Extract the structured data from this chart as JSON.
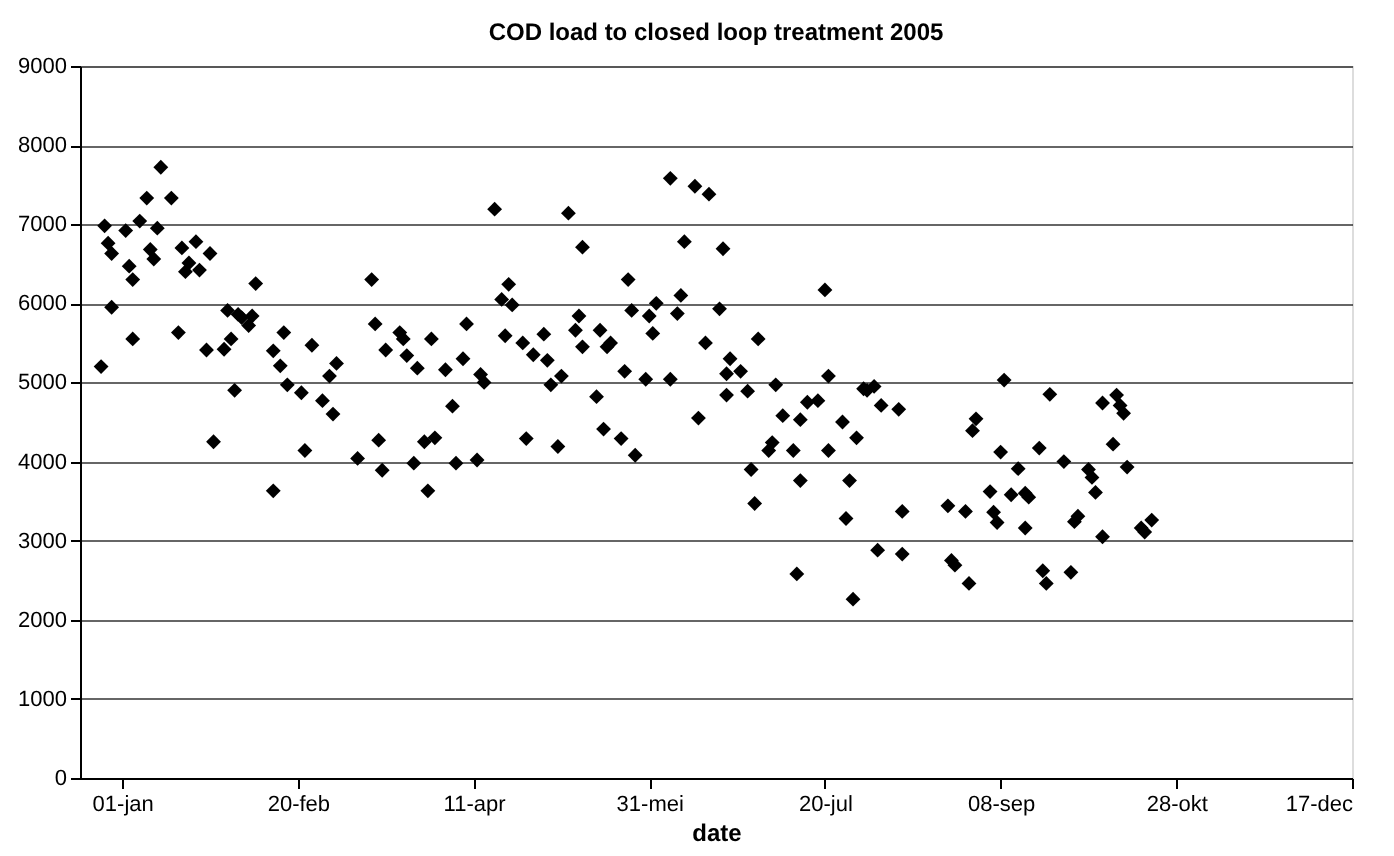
{
  "chart_data": {
    "type": "scatter",
    "title": "COD load to closed loop treatment 2005",
    "xlabel": "date",
    "x": [
      "2004-12-26",
      "2004-12-27",
      "2004-12-28",
      "2004-12-29",
      "2004-12-29",
      "2005-01-02",
      "2005-01-03",
      "2005-01-04",
      "2005-01-04",
      "2005-01-06",
      "2005-01-08",
      "2005-01-09",
      "2005-01-10",
      "2005-01-11",
      "2005-01-12",
      "2005-01-15",
      "2005-01-17",
      "2005-01-18",
      "2005-01-19",
      "2005-01-20",
      "2005-01-22",
      "2005-01-23",
      "2005-01-25",
      "2005-01-26",
      "2005-01-27",
      "2005-01-30",
      "2005-01-31",
      "2005-02-01",
      "2005-02-02",
      "2005-02-03",
      "2005-02-04",
      "2005-02-06",
      "2005-02-07",
      "2005-02-08",
      "2005-02-13",
      "2005-02-13",
      "2005-02-15",
      "2005-02-16",
      "2005-02-17",
      "2005-02-21",
      "2005-02-22",
      "2005-02-24",
      "2005-02-27",
      "2005-03-01",
      "2005-03-02",
      "2005-03-03",
      "2005-03-09",
      "2005-03-13",
      "2005-03-14",
      "2005-03-15",
      "2005-03-16",
      "2005-03-17",
      "2005-03-21",
      "2005-03-22",
      "2005-03-23",
      "2005-03-25",
      "2005-03-26",
      "2005-03-28",
      "2005-03-29",
      "2005-03-30",
      "2005-03-31",
      "2005-04-03",
      "2005-04-05",
      "2005-04-06",
      "2005-04-08",
      "2005-04-09",
      "2005-04-12",
      "2005-04-13",
      "2005-04-14",
      "2005-04-17",
      "2005-04-19",
      "2005-04-20",
      "2005-04-21",
      "2005-04-22",
      "2005-04-25",
      "2005-04-26",
      "2005-04-28",
      "2005-05-01",
      "2005-05-02",
      "2005-05-03",
      "2005-05-05",
      "2005-05-06",
      "2005-05-08",
      "2005-05-10",
      "2005-05-11",
      "2005-05-12",
      "2005-05-12",
      "2005-05-16",
      "2005-05-17",
      "2005-05-18",
      "2005-05-19",
      "2005-05-20",
      "2005-05-23",
      "2005-05-24",
      "2005-05-25",
      "2005-05-26",
      "2005-05-27",
      "2005-05-30",
      "2005-05-31",
      "2005-06-01",
      "2005-06-02",
      "2005-06-06",
      "2005-06-06",
      "2005-06-08",
      "2005-06-09",
      "2005-06-10",
      "2005-06-13",
      "2005-06-14",
      "2005-06-16",
      "2005-06-17",
      "2005-06-20",
      "2005-06-21",
      "2005-06-22",
      "2005-06-22",
      "2005-06-23",
      "2005-06-26",
      "2005-06-28",
      "2005-06-29",
      "2005-06-30",
      "2005-07-01",
      "2005-07-04",
      "2005-07-05",
      "2005-07-06",
      "2005-07-08",
      "2005-07-11",
      "2005-07-12",
      "2005-07-13",
      "2005-07-13",
      "2005-07-15",
      "2005-07-18",
      "2005-07-20",
      "2005-07-21",
      "2005-07-21",
      "2005-07-25",
      "2005-07-26",
      "2005-07-27",
      "2005-07-28",
      "2005-07-29",
      "2005-07-31",
      "2005-08-01",
      "2005-08-03",
      "2005-08-04",
      "2005-08-05",
      "2005-08-10",
      "2005-08-11",
      "2005-08-11",
      "2005-08-24",
      "2005-08-25",
      "2005-08-26",
      "2005-08-29",
      "2005-08-30",
      "2005-08-31",
      "2005-09-01",
      "2005-09-05",
      "2005-09-06",
      "2005-09-07",
      "2005-09-08",
      "2005-09-09",
      "2005-09-11",
      "2005-09-13",
      "2005-09-15",
      "2005-09-15",
      "2005-09-16",
      "2005-09-19",
      "2005-09-20",
      "2005-09-21",
      "2005-09-22",
      "2005-09-26",
      "2005-09-28",
      "2005-09-29",
      "2005-09-30",
      "2005-10-03",
      "2005-10-04",
      "2005-10-05",
      "2005-10-07",
      "2005-10-07",
      "2005-10-10",
      "2005-10-11",
      "2005-10-12",
      "2005-10-13",
      "2005-10-14",
      "2005-10-18",
      "2005-10-19",
      "2005-10-21"
    ],
    "series": [
      {
        "color": "#000000",
        "values": [
          5200,
          6980,
          6760,
          6630,
          5950,
          6920,
          6470,
          5550,
          6300,
          7040,
          7330,
          6680,
          6560,
          6950,
          7720,
          7330,
          5630,
          6700,
          6400,
          6510,
          6780,
          6420,
          5410,
          6630,
          4250,
          5420,
          5910,
          5550,
          4900,
          5860,
          5820,
          5720,
          5840,
          6250,
          5400,
          3630,
          5210,
          5630,
          4970,
          4870,
          4140,
          5470,
          4770,
          5080,
          4600,
          5240,
          4040,
          6300,
          5740,
          4270,
          3890,
          5410,
          5630,
          5550,
          5340,
          3980,
          5180,
          4250,
          3630,
          5550,
          4300,
          5160,
          4700,
          3980,
          5300,
          5740,
          4020,
          5100,
          5000,
          7190,
          6050,
          5590,
          6240,
          5980,
          5500,
          4290,
          5350,
          5610,
          5280,
          4970,
          4190,
          5080,
          7140,
          5660,
          5840,
          5450,
          6710,
          4820,
          5660,
          4410,
          5450,
          5500,
          4290,
          5140,
          6300,
          5910,
          4080,
          5040,
          5840,
          5620,
          6000,
          5040,
          7580,
          5870,
          6100,
          6780,
          7480,
          4550,
          5500,
          7380,
          5930,
          6690,
          5110,
          4840,
          5300,
          5140,
          4890,
          3900,
          3470,
          5550,
          4140,
          4240,
          4970,
          4580,
          4140,
          2580,
          3760,
          4530,
          4750,
          4770,
          6170,
          5080,
          4140,
          4500,
          3280,
          3760,
          2260,
          4300,
          4920,
          4900,
          4950,
          2880,
          4710,
          4660,
          3370,
          2830,
          3440,
          2750,
          2690,
          3370,
          2460,
          4390,
          4540,
          3620,
          3360,
          3230,
          4120,
          5030,
          3580,
          3910,
          3600,
          3160,
          3550,
          4170,
          2620,
          2460,
          4850,
          4000,
          2600,
          3240,
          3310,
          3900,
          3800,
          3610,
          3050,
          4740,
          4220,
          4840,
          4710,
          4610,
          3930,
          3160,
          3110,
          3260
        ]
      }
    ],
    "xlim": [
      "2004-12-20",
      "2005-12-17"
    ],
    "xticks": [
      {
        "value": "2005-01-01",
        "label": "01-jan"
      },
      {
        "value": "2005-02-20",
        "label": "20-feb"
      },
      {
        "value": "2005-04-11",
        "label": "11-apr"
      },
      {
        "value": "2005-05-31",
        "label": "31-mei"
      },
      {
        "value": "2005-07-20",
        "label": "20-jul"
      },
      {
        "value": "2005-09-08",
        "label": "08-sep"
      },
      {
        "value": "2005-10-28",
        "label": "28-okt"
      },
      {
        "value": "2005-12-17",
        "label": "17-dec"
      }
    ],
    "ylim": [
      0,
      9000
    ],
    "yticks": [
      0,
      1000,
      2000,
      3000,
      4000,
      5000,
      6000,
      7000,
      8000,
      9000
    ],
    "grid": "y",
    "marker": "diamond"
  }
}
